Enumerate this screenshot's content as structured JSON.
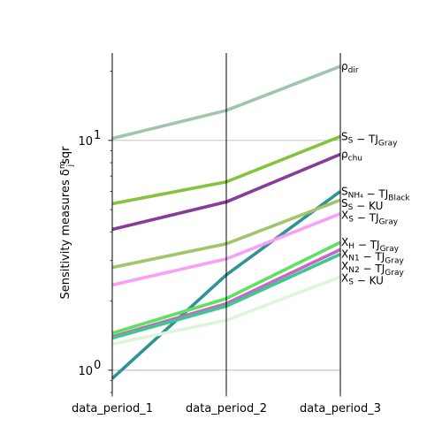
{
  "chart_data": {
    "type": "line",
    "title": "",
    "xlabel": "",
    "ylabel": "Sensitivity measures δ_j^m sqr",
    "ylabel_parts": {
      "main": "Sensitivity measures ",
      "delta": "δ",
      "sup": "m",
      "sub": "j",
      "tail": "sqr"
    },
    "yscale": "log",
    "ylim": [
      0.8,
      24
    ],
    "yticks": [
      {
        "value": 1,
        "label": "10",
        "exp": "0"
      },
      {
        "value": 10,
        "label": "10",
        "exp": "1"
      }
    ],
    "grid": "horizontal at major ticks",
    "categories": [
      "data_period_1",
      "data_period_2",
      "data_period_3"
    ],
    "series": [
      {
        "label_parts": [
          [
            "ρ",
            ""
          ],
          [
            "dir",
            "sub"
          ]
        ],
        "color": "#9fc5ad",
        "values": [
          10.2,
          13.5,
          21.0
        ]
      },
      {
        "label_parts": [
          [
            "S",
            ""
          ],
          [
            "S",
            "sub"
          ],
          [
            " − TJ",
            ""
          ],
          [
            "Gray",
            "sub"
          ]
        ],
        "color": "#86c23a",
        "values": [
          5.3,
          6.6,
          10.4
        ]
      },
      {
        "label_parts": [
          [
            "ρ",
            ""
          ],
          [
            "chu",
            "sub"
          ]
        ],
        "color": "#863c9a",
        "values": [
          4.1,
          5.4,
          8.7
        ]
      },
      {
        "label_parts": [
          [
            "S",
            ""
          ],
          [
            "NH₄",
            "sub"
          ],
          [
            " − TJ",
            ""
          ],
          [
            "Black",
            "sub"
          ]
        ],
        "color": "#2f9393",
        "values": [
          0.92,
          2.6,
          6.0
        ]
      },
      {
        "label_parts": [
          [
            "S",
            ""
          ],
          [
            "S",
            "sub"
          ],
          [
            " − KU",
            ""
          ]
        ],
        "color": "#a3c46a",
        "values": [
          2.8,
          3.55,
          5.5
        ]
      },
      {
        "label_parts": [
          [
            "X",
            ""
          ],
          [
            "S",
            "sub"
          ],
          [
            " − TJ",
            ""
          ],
          [
            "Gray",
            "sub"
          ]
        ],
        "color": "#f7a0f5",
        "values": [
          2.35,
          3.05,
          4.8
        ]
      },
      {
        "label_parts": [
          [
            "X",
            ""
          ],
          [
            "H",
            "sub"
          ],
          [
            " − TJ",
            ""
          ],
          [
            "Gray",
            "sub"
          ]
        ],
        "color": "#5ee25e",
        "values": [
          1.45,
          2.05,
          3.6
        ]
      },
      {
        "label_parts": [
          [
            "X",
            ""
          ],
          [
            "N1",
            "sub"
          ],
          [
            " − TJ",
            ""
          ],
          [
            "Gray",
            "sub"
          ]
        ],
        "color": "#c768c9",
        "values": [
          1.4,
          1.95,
          3.35
        ]
      },
      {
        "label_parts": [
          [
            "X",
            ""
          ],
          [
            "N2",
            "sub"
          ],
          [
            " − TJ",
            ""
          ],
          [
            "Gray",
            "sub"
          ]
        ],
        "color": "#3dc98a",
        "values": [
          1.38,
          1.9,
          3.2
        ]
      },
      {
        "label_parts": [
          [
            "X",
            ""
          ],
          [
            "S",
            "sub"
          ],
          [
            " − KU",
            ""
          ]
        ],
        "color": "#dcf5dc",
        "values": [
          1.3,
          1.65,
          2.55
        ]
      }
    ]
  }
}
